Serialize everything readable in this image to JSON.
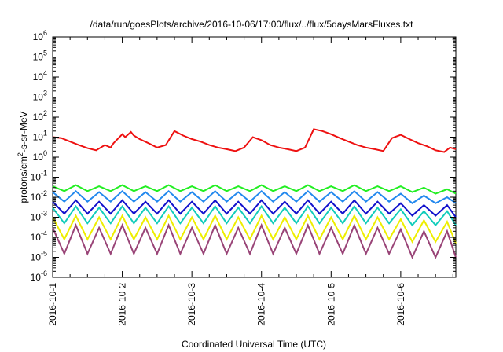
{
  "chart_data": {
    "type": "line",
    "title": "/data/run/goesPlots/archive/2016-10-06/17:00/flux/../flux/5daysMarsFluxes.txt",
    "xlabel": "Coordinated Universal Time (UTC)",
    "ylabel": "protons/cm2-s-sr-MeV",
    "ylabel_parts": {
      "pre": "protons/cm",
      "sup": "2",
      "post": "-s-sr-MeV"
    },
    "yscale": "log",
    "ylim_exp": [
      -6,
      6
    ],
    "y_tick_labels": [
      {
        "base": "10",
        "exp": "-6"
      },
      {
        "base": "10",
        "exp": "-5"
      },
      {
        "base": "10",
        "exp": "-4"
      },
      {
        "base": "10",
        "exp": "-3"
      },
      {
        "base": "10",
        "exp": "-2"
      },
      {
        "base": "10",
        "exp": "-1"
      },
      {
        "base": "10",
        "exp": "0"
      },
      {
        "base": "10",
        "exp": "1"
      },
      {
        "base": "10",
        "exp": "2"
      },
      {
        "base": "10",
        "exp": "3"
      },
      {
        "base": "10",
        "exp": "4"
      },
      {
        "base": "10",
        "exp": "5"
      },
      {
        "base": "10",
        "exp": "6"
      }
    ],
    "xlim": [
      "2016-10-01T00:00",
      "2016-10-06T19:00"
    ],
    "x_tick_labels": [
      "2016-10-1",
      "2016-10-2",
      "2016-10-3",
      "2016-10-4",
      "2016-10-5",
      "2016-10-6"
    ],
    "grid": false,
    "legend": "none",
    "series": [
      {
        "color": "#ee1111",
        "x": [
          "2016-10-01T00:00",
          "2016-10-01T03:00",
          "2016-10-01T06:00",
          "2016-10-01T09:00",
          "2016-10-01T12:00",
          "2016-10-01T15:00",
          "2016-10-01T18:00",
          "2016-10-01T20:00",
          "2016-10-01T21:00",
          "2016-10-02T00:00",
          "2016-10-02T01:00",
          "2016-10-02T03:00",
          "2016-10-02T04:00",
          "2016-10-02T06:00",
          "2016-10-02T09:00",
          "2016-10-02T12:00",
          "2016-10-02T15:00",
          "2016-10-02T18:00",
          "2016-10-02T21:00",
          "2016-10-03T00:00",
          "2016-10-03T03:00",
          "2016-10-03T06:00",
          "2016-10-03T09:00",
          "2016-10-03T12:00",
          "2016-10-03T15:00",
          "2016-10-03T18:00",
          "2016-10-03T21:00",
          "2016-10-04T00:00",
          "2016-10-04T03:00",
          "2016-10-04T06:00",
          "2016-10-04T09:00",
          "2016-10-04T12:00",
          "2016-10-04T15:00",
          "2016-10-04T18:00",
          "2016-10-04T21:00",
          "2016-10-05T00:00",
          "2016-10-05T03:00",
          "2016-10-05T06:00",
          "2016-10-05T09:00",
          "2016-10-05T12:00",
          "2016-10-05T15:00",
          "2016-10-05T18:00",
          "2016-10-05T21:00",
          "2016-10-06T00:00",
          "2016-10-06T03:00",
          "2016-10-06T06:00",
          "2016-10-06T09:00",
          "2016-10-06T12:00",
          "2016-10-06T15:00",
          "2016-10-06T17:00",
          "2016-10-06T19:00"
        ],
        "y": [
          10,
          9,
          6,
          4,
          2.8,
          2.2,
          4,
          3,
          5,
          14,
          10,
          18,
          12,
          8,
          5,
          3,
          4,
          20,
          12,
          8,
          6,
          4,
          3,
          2.5,
          2,
          3,
          10,
          7,
          4,
          3,
          2.5,
          2,
          3,
          25,
          20,
          14,
          9,
          6,
          4,
          3,
          2.5,
          2,
          9,
          13,
          8,
          5,
          3.5,
          2.2,
          1.8,
          3,
          2.5
        ]
      },
      {
        "color": "#22ee22",
        "x": [
          "2016-10-01T00:00",
          "2016-10-01T04:00",
          "2016-10-01T08:00",
          "2016-10-01T12:00",
          "2016-10-01T16:00",
          "2016-10-01T20:00",
          "2016-10-02T00:00",
          "2016-10-02T04:00",
          "2016-10-02T08:00",
          "2016-10-02T12:00",
          "2016-10-02T16:00",
          "2016-10-02T20:00",
          "2016-10-03T00:00",
          "2016-10-03T04:00",
          "2016-10-03T08:00",
          "2016-10-03T12:00",
          "2016-10-03T16:00",
          "2016-10-03T20:00",
          "2016-10-04T00:00",
          "2016-10-04T04:00",
          "2016-10-04T08:00",
          "2016-10-04T12:00",
          "2016-10-04T16:00",
          "2016-10-04T20:00",
          "2016-10-05T00:00",
          "2016-10-05T04:00",
          "2016-10-05T08:00",
          "2016-10-05T12:00",
          "2016-10-05T16:00",
          "2016-10-05T20:00",
          "2016-10-06T00:00",
          "2016-10-06T04:00",
          "2016-10-06T08:00",
          "2016-10-06T12:00",
          "2016-10-06T16:00",
          "2016-10-06T19:00"
        ],
        "y": [
          0.035,
          0.02,
          0.04,
          0.02,
          0.035,
          0.02,
          0.04,
          0.02,
          0.035,
          0.02,
          0.04,
          0.02,
          0.035,
          0.02,
          0.04,
          0.02,
          0.035,
          0.02,
          0.04,
          0.02,
          0.035,
          0.02,
          0.04,
          0.02,
          0.035,
          0.02,
          0.04,
          0.02,
          0.035,
          0.02,
          0.035,
          0.018,
          0.03,
          0.015,
          0.025,
          0.015
        ]
      },
      {
        "color": "#2288ee",
        "x": [
          "2016-10-01T00:00",
          "2016-10-01T04:00",
          "2016-10-01T08:00",
          "2016-10-01T12:00",
          "2016-10-01T16:00",
          "2016-10-01T20:00",
          "2016-10-02T00:00",
          "2016-10-02T04:00",
          "2016-10-02T08:00",
          "2016-10-02T12:00",
          "2016-10-02T16:00",
          "2016-10-02T20:00",
          "2016-10-03T00:00",
          "2016-10-03T04:00",
          "2016-10-03T08:00",
          "2016-10-03T12:00",
          "2016-10-03T16:00",
          "2016-10-03T20:00",
          "2016-10-04T00:00",
          "2016-10-04T04:00",
          "2016-10-04T08:00",
          "2016-10-04T12:00",
          "2016-10-04T16:00",
          "2016-10-04T20:00",
          "2016-10-05T00:00",
          "2016-10-05T04:00",
          "2016-10-05T08:00",
          "2016-10-05T12:00",
          "2016-10-05T16:00",
          "2016-10-05T20:00",
          "2016-10-06T00:00",
          "2016-10-06T04:00",
          "2016-10-06T08:00",
          "2016-10-06T12:00",
          "2016-10-06T16:00",
          "2016-10-06T19:00"
        ],
        "y": [
          0.018,
          0.006,
          0.02,
          0.006,
          0.018,
          0.006,
          0.02,
          0.006,
          0.018,
          0.006,
          0.02,
          0.006,
          0.018,
          0.006,
          0.02,
          0.006,
          0.018,
          0.006,
          0.02,
          0.006,
          0.018,
          0.006,
          0.02,
          0.006,
          0.018,
          0.006,
          0.02,
          0.006,
          0.018,
          0.006,
          0.015,
          0.005,
          0.012,
          0.005,
          0.01,
          0.005
        ]
      },
      {
        "color": "#1111cc",
        "x": [
          "2016-10-01T00:00",
          "2016-10-01T04:00",
          "2016-10-01T08:00",
          "2016-10-01T12:00",
          "2016-10-01T16:00",
          "2016-10-01T20:00",
          "2016-10-02T00:00",
          "2016-10-02T04:00",
          "2016-10-02T08:00",
          "2016-10-02T12:00",
          "2016-10-02T16:00",
          "2016-10-02T20:00",
          "2016-10-03T00:00",
          "2016-10-03T04:00",
          "2016-10-03T08:00",
          "2016-10-03T12:00",
          "2016-10-03T16:00",
          "2016-10-03T20:00",
          "2016-10-04T00:00",
          "2016-10-04T04:00",
          "2016-10-04T08:00",
          "2016-10-04T12:00",
          "2016-10-04T16:00",
          "2016-10-04T20:00",
          "2016-10-05T00:00",
          "2016-10-05T04:00",
          "2016-10-05T08:00",
          "2016-10-05T12:00",
          "2016-10-05T16:00",
          "2016-10-05T20:00",
          "2016-10-06T00:00",
          "2016-10-06T04:00",
          "2016-10-06T08:00",
          "2016-10-06T12:00",
          "2016-10-06T16:00",
          "2016-10-06T19:00"
        ],
        "y": [
          0.006,
          0.0015,
          0.007,
          0.0015,
          0.006,
          0.0015,
          0.007,
          0.0015,
          0.006,
          0.0015,
          0.007,
          0.0015,
          0.006,
          0.0015,
          0.007,
          0.0015,
          0.006,
          0.0015,
          0.007,
          0.0015,
          0.006,
          0.0015,
          0.007,
          0.0015,
          0.006,
          0.0015,
          0.007,
          0.0015,
          0.006,
          0.0015,
          0.005,
          0.0012,
          0.004,
          0.0012,
          0.004,
          0.001
        ]
      },
      {
        "color": "#11ccbb",
        "x": [
          "2016-10-01T00:00",
          "2016-10-01T04:00",
          "2016-10-01T08:00",
          "2016-10-01T12:00",
          "2016-10-01T16:00",
          "2016-10-01T20:00",
          "2016-10-02T00:00",
          "2016-10-02T04:00",
          "2016-10-02T08:00",
          "2016-10-02T12:00",
          "2016-10-02T16:00",
          "2016-10-02T20:00",
          "2016-10-03T00:00",
          "2016-10-03T04:00",
          "2016-10-03T08:00",
          "2016-10-03T12:00",
          "2016-10-03T16:00",
          "2016-10-03T20:00",
          "2016-10-04T00:00",
          "2016-10-04T04:00",
          "2016-10-04T08:00",
          "2016-10-04T12:00",
          "2016-10-04T16:00",
          "2016-10-04T20:00",
          "2016-10-05T00:00",
          "2016-10-05T04:00",
          "2016-10-05T08:00",
          "2016-10-05T12:00",
          "2016-10-05T16:00",
          "2016-10-05T20:00",
          "2016-10-06T00:00",
          "2016-10-06T04:00",
          "2016-10-06T08:00",
          "2016-10-06T12:00",
          "2016-10-06T16:00",
          "2016-10-06T19:00"
        ],
        "y": [
          0.003,
          0.0005,
          0.0035,
          0.0005,
          0.003,
          0.0005,
          0.0035,
          0.0005,
          0.003,
          0.0005,
          0.0035,
          0.0005,
          0.003,
          0.0005,
          0.0035,
          0.0005,
          0.003,
          0.0005,
          0.0035,
          0.0005,
          0.003,
          0.0005,
          0.0035,
          0.0005,
          0.003,
          0.0005,
          0.0035,
          0.0005,
          0.003,
          0.0005,
          0.0025,
          0.0004,
          0.002,
          0.0004,
          0.002,
          0.0004
        ]
      },
      {
        "color": "#eeee00",
        "x": [
          "2016-10-01T00:00",
          "2016-10-01T04:00",
          "2016-10-01T08:00",
          "2016-10-01T12:00",
          "2016-10-01T16:00",
          "2016-10-01T20:00",
          "2016-10-02T00:00",
          "2016-10-02T04:00",
          "2016-10-02T08:00",
          "2016-10-02T12:00",
          "2016-10-02T16:00",
          "2016-10-02T20:00",
          "2016-10-03T00:00",
          "2016-10-03T04:00",
          "2016-10-03T08:00",
          "2016-10-03T12:00",
          "2016-10-03T16:00",
          "2016-10-03T20:00",
          "2016-10-04T00:00",
          "2016-10-04T04:00",
          "2016-10-04T08:00",
          "2016-10-04T12:00",
          "2016-10-04T16:00",
          "2016-10-04T20:00",
          "2016-10-05T00:00",
          "2016-10-05T04:00",
          "2016-10-05T08:00",
          "2016-10-05T12:00",
          "2016-10-05T16:00",
          "2016-10-05T20:00",
          "2016-10-06T00:00",
          "2016-10-06T04:00",
          "2016-10-06T08:00",
          "2016-10-06T12:00",
          "2016-10-06T16:00",
          "2016-10-06T19:00"
        ],
        "y": [
          0.001,
          8e-05,
          0.0012,
          8e-05,
          0.001,
          8e-05,
          0.0012,
          8e-05,
          0.001,
          8e-05,
          0.0012,
          8e-05,
          0.001,
          8e-05,
          0.0012,
          8e-05,
          0.001,
          8e-05,
          0.0012,
          8e-05,
          0.001,
          8e-05,
          0.0012,
          8e-05,
          0.001,
          8e-05,
          0.0012,
          8e-05,
          0.001,
          8e-05,
          0.0008,
          6e-05,
          0.0007,
          6e-05,
          0.0006,
          5e-05
        ]
      },
      {
        "color": "#994477",
        "x": [
          "2016-10-01T00:00",
          "2016-10-01T04:00",
          "2016-10-01T08:00",
          "2016-10-01T12:00",
          "2016-10-01T16:00",
          "2016-10-01T20:00",
          "2016-10-02T00:00",
          "2016-10-02T04:00",
          "2016-10-02T08:00",
          "2016-10-02T12:00",
          "2016-10-02T16:00",
          "2016-10-02T20:00",
          "2016-10-03T00:00",
          "2016-10-03T04:00",
          "2016-10-03T08:00",
          "2016-10-03T12:00",
          "2016-10-03T16:00",
          "2016-10-03T20:00",
          "2016-10-04T00:00",
          "2016-10-04T04:00",
          "2016-10-04T08:00",
          "2016-10-04T12:00",
          "2016-10-04T16:00",
          "2016-10-04T20:00",
          "2016-10-05T00:00",
          "2016-10-05T04:00",
          "2016-10-05T08:00",
          "2016-10-05T12:00",
          "2016-10-05T16:00",
          "2016-10-05T20:00",
          "2016-10-06T00:00",
          "2016-10-06T04:00",
          "2016-10-06T08:00",
          "2016-10-06T12:00",
          "2016-10-06T16:00",
          "2016-10-06T19:00"
        ],
        "y": [
          0.0003,
          1.5e-05,
          0.0004,
          1.5e-05,
          0.0003,
          1.5e-05,
          0.0004,
          1.5e-05,
          0.0003,
          1.5e-05,
          0.0004,
          1.5e-05,
          0.0003,
          1.5e-05,
          0.0004,
          1.5e-05,
          0.0003,
          1.5e-05,
          0.0004,
          1.5e-05,
          0.0003,
          1.5e-05,
          0.0004,
          1.5e-05,
          0.0003,
          1.5e-05,
          0.0004,
          1.5e-05,
          0.0003,
          1.5e-05,
          0.00025,
          1e-05,
          0.0002,
          1e-05,
          0.0002,
          1e-05
        ]
      }
    ]
  }
}
